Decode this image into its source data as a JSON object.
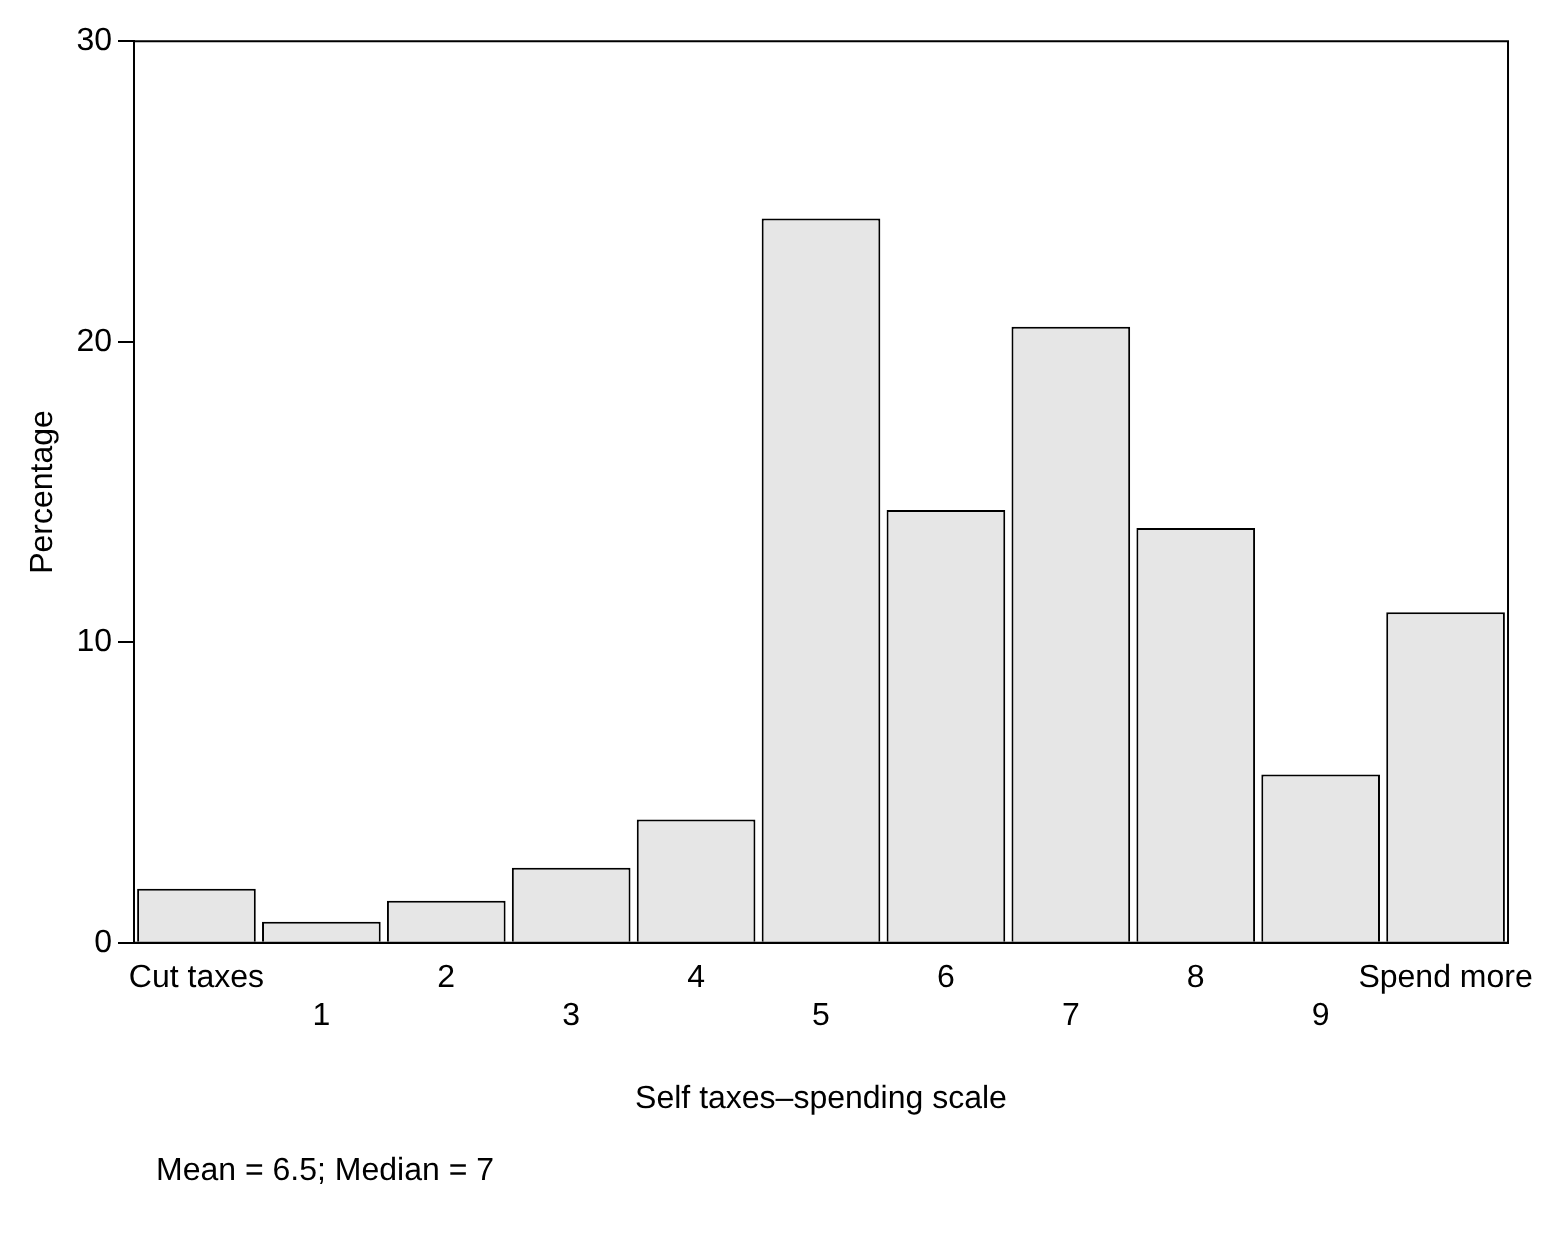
{
  "chart_data": {
    "type": "bar",
    "xlabel": "Self taxes–spending scale",
    "ylabel": "Percentage",
    "categories": [
      "Cut taxes",
      "1",
      "2",
      "3",
      "4",
      "5",
      "6",
      "7",
      "8",
      "9",
      "Spend more"
    ],
    "values": [
      1.8,
      0.7,
      1.4,
      2.5,
      4.1,
      24.1,
      14.4,
      20.5,
      13.8,
      5.6,
      11.0
    ],
    "color": "#e6e6e6",
    "ylim": [
      0,
      30
    ],
    "yticks": [
      0,
      10,
      20,
      30
    ],
    "grid": false,
    "legend": false,
    "annotations": [
      "Mean = 6.5; Median = 7"
    ]
  }
}
